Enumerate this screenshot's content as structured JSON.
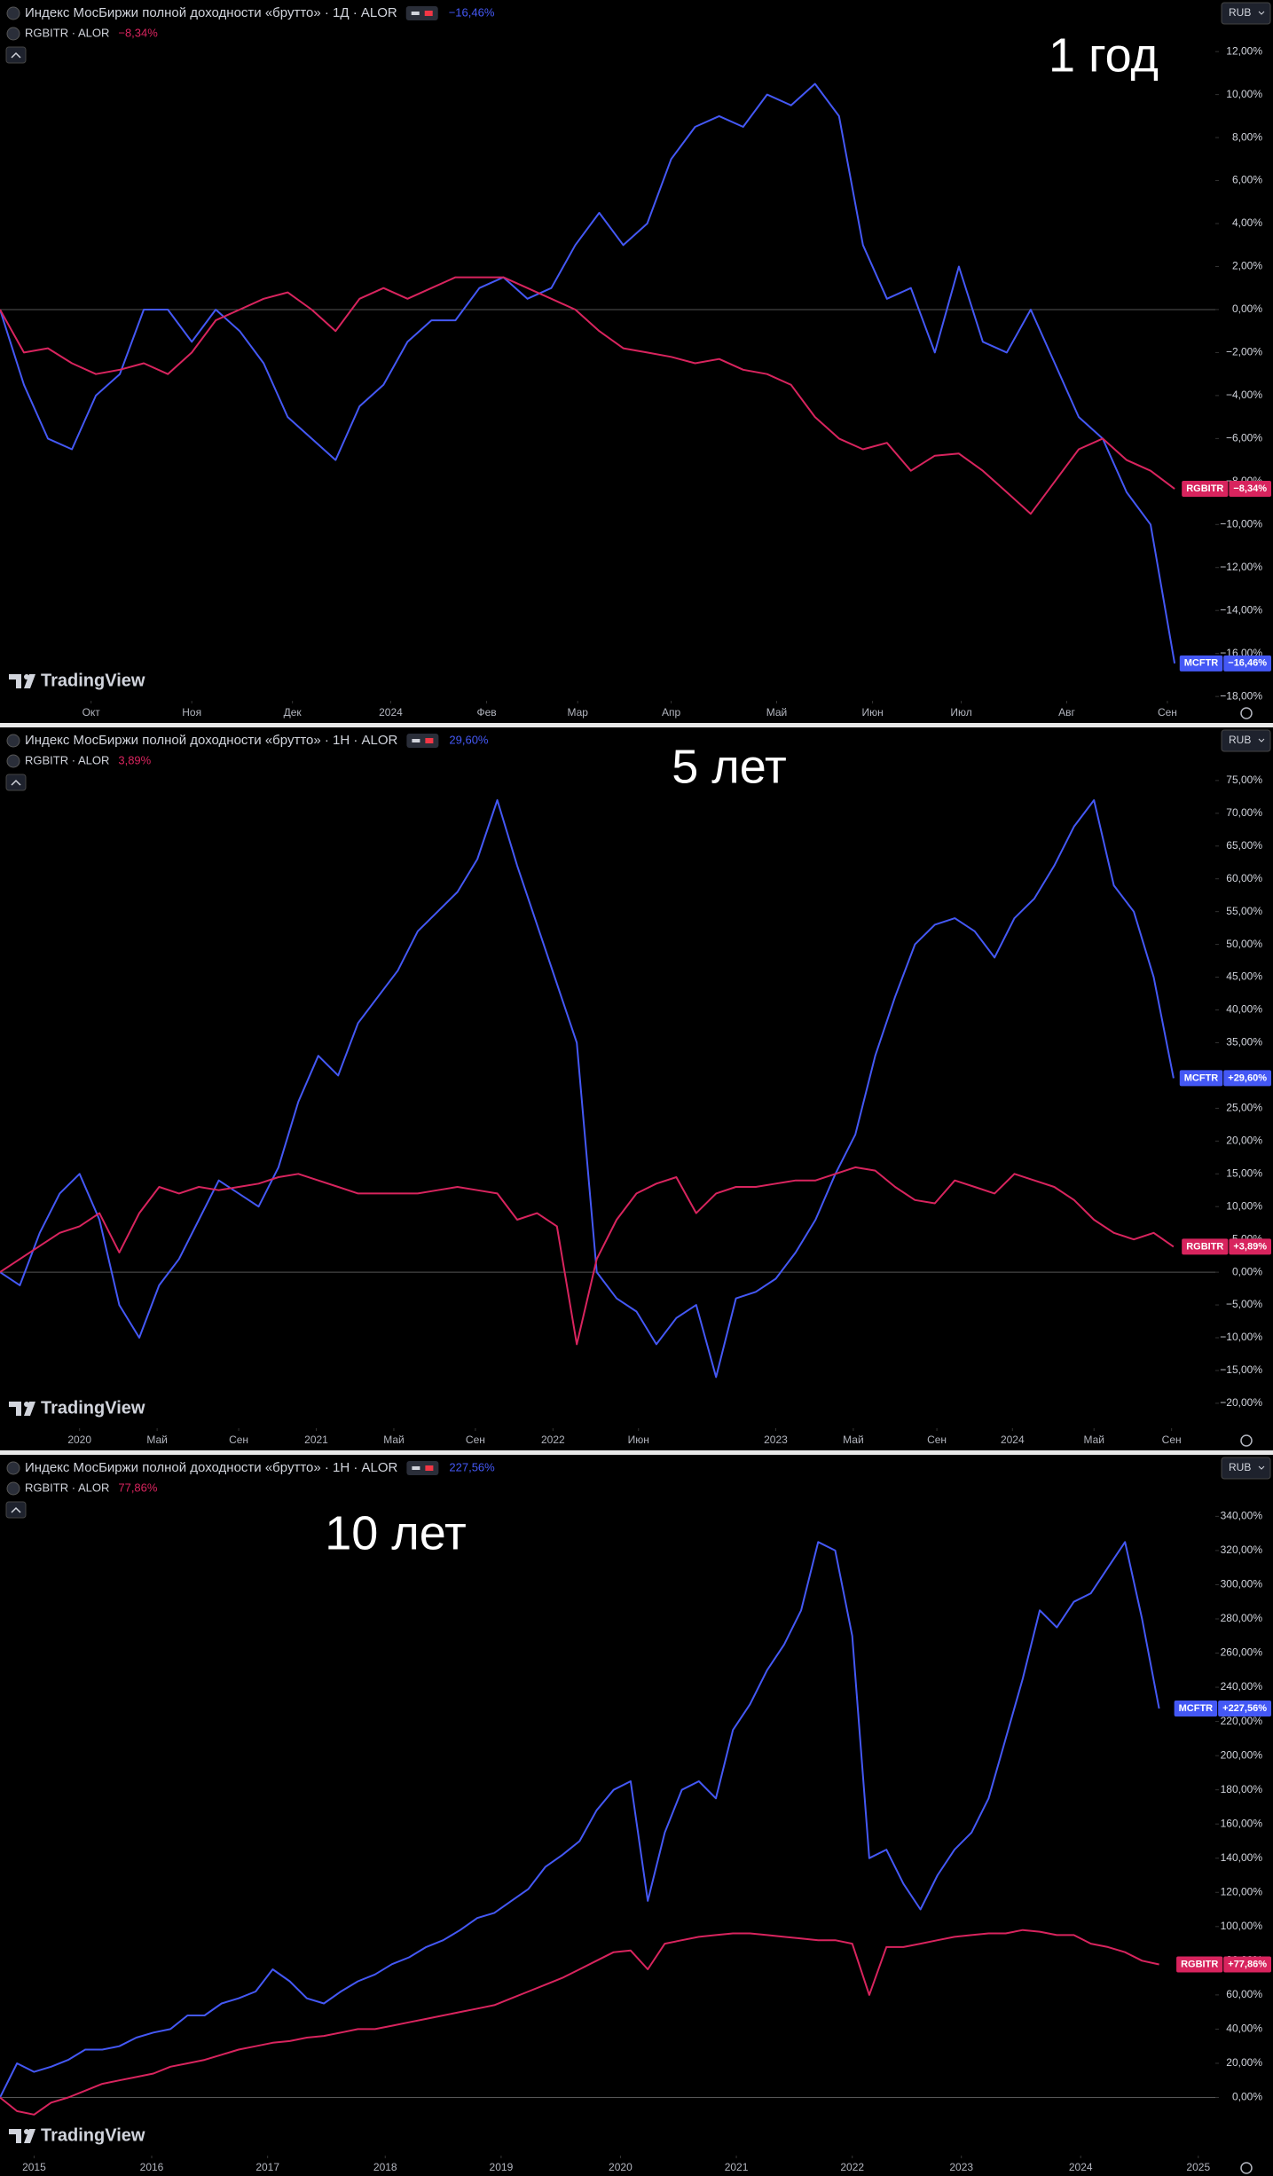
{
  "chart_data": [
    {
      "type": "line",
      "title": "Индекс МосБиржи полной доходности «брутто» · 1Д · ALOR",
      "annotation": "1 год",
      "currency": "RUB",
      "watermark": "TradingView",
      "xlim": [
        0,
        50.7
      ],
      "ylim": [
        -18.2,
        14.4
      ],
      "xticks": [
        {
          "value": 3.8,
          "label": "Окт"
        },
        {
          "value": 8.0,
          "label": "Ноя"
        },
        {
          "value": 12.2,
          "label": "Дек"
        },
        {
          "value": 16.3,
          "label": "2024"
        },
        {
          "value": 20.3,
          "label": "Фев"
        },
        {
          "value": 24.1,
          "label": "Мар"
        },
        {
          "value": 28.0,
          "label": "Апр"
        },
        {
          "value": 32.4,
          "label": "Май"
        },
        {
          "value": 36.4,
          "label": "Июн"
        },
        {
          "value": 40.1,
          "label": "Июл"
        },
        {
          "value": 44.5,
          "label": "Авг"
        },
        {
          "value": 48.7,
          "label": "Сен"
        }
      ],
      "yticks": [
        {
          "value": 12,
          "label": "12,00%"
        },
        {
          "value": 10,
          "label": "10,00%"
        },
        {
          "value": 8,
          "label": "8,00%"
        },
        {
          "value": 6,
          "label": "6,00%"
        },
        {
          "value": 4,
          "label": "4,00%"
        },
        {
          "value": 2,
          "label": "2,00%"
        },
        {
          "value": 0,
          "label": "0,00%"
        },
        {
          "value": -2,
          "label": "−2,00%"
        },
        {
          "value": -4,
          "label": "−4,00%"
        },
        {
          "value": -6,
          "label": "−6,00%"
        },
        {
          "value": -8,
          "label": "−8,00%"
        },
        {
          "value": -10,
          "label": "−10,00%"
        },
        {
          "value": -12,
          "label": "−12,00%"
        },
        {
          "value": -14,
          "label": "−14,00%"
        },
        {
          "value": -16,
          "label": "−16,00%"
        },
        {
          "value": -18,
          "label": "−18,00%"
        }
      ],
      "series": [
        {
          "name": "MCFTR",
          "legend": "Индекс МосБиржи полной доходности «брутто» · 1Д · ALOR",
          "color": "#4458f5",
          "legend_value": "−16,46%",
          "last_label": "−16,46%",
          "values": [
            0,
            -3.5,
            -6,
            -6.5,
            -4,
            -3,
            0,
            0,
            -1.5,
            0,
            -1,
            -2.5,
            -5,
            -6,
            -7,
            -4.5,
            -3.5,
            -1.5,
            -0.5,
            -0.5,
            1,
            1.5,
            0.5,
            1,
            3,
            4.5,
            3,
            4,
            7,
            8.5,
            9,
            8.5,
            10,
            9.5,
            10.5,
            9,
            3,
            0.5,
            1,
            -2,
            2,
            -1.5,
            -2,
            0,
            -2.5,
            -5,
            -6,
            -8.5,
            -10,
            -16.46
          ]
        },
        {
          "name": "RGBITR",
          "legend": "RGBITR · ALOR",
          "color": "#d8245e",
          "legend_value": "−8,34%",
          "last_label": "−8,34%",
          "values": [
            0,
            -2,
            -1.8,
            -2.5,
            -3,
            -2.8,
            -2.5,
            -3,
            -2,
            -0.5,
            0,
            0.5,
            0.8,
            0,
            -1,
            0.5,
            1,
            0.5,
            1,
            1.5,
            1.5,
            1.5,
            1,
            0.5,
            0,
            -1,
            -1.8,
            -2,
            -2.2,
            -2.5,
            -2.3,
            -2.8,
            -3,
            -3.5,
            -5,
            -6,
            -6.5,
            -6.2,
            -7.5,
            -6.8,
            -6.7,
            -7.5,
            -8.5,
            -9.5,
            -8,
            -6.5,
            -6,
            -7,
            -7.5,
            -8.34
          ]
        }
      ]
    },
    {
      "type": "line",
      "title": "Индекс МосБиржи полной доходности «брутто» · 1Н · ALOR",
      "annotation": "5 лет",
      "currency": "RUB",
      "watermark": "TradingView",
      "xlim": [
        0,
        61.1
      ],
      "ylim": [
        -23.8,
        83.1
      ],
      "xticks": [
        {
          "value": 4.0,
          "label": "2020"
        },
        {
          "value": 7.9,
          "label": "Май"
        },
        {
          "value": 12.0,
          "label": "Сен"
        },
        {
          "value": 15.9,
          "label": "2021"
        },
        {
          "value": 19.8,
          "label": "Май"
        },
        {
          "value": 23.9,
          "label": "Сен"
        },
        {
          "value": 27.8,
          "label": "2022"
        },
        {
          "value": 32.1,
          "label": "Июн"
        },
        {
          "value": 39.0,
          "label": "2023"
        },
        {
          "value": 42.9,
          "label": "Май"
        },
        {
          "value": 47.1,
          "label": "Сен"
        },
        {
          "value": 50.9,
          "label": "2024"
        },
        {
          "value": 55.0,
          "label": "Май"
        },
        {
          "value": 58.9,
          "label": "Сен"
        }
      ],
      "yticks": [
        {
          "value": 75,
          "label": "75,00%"
        },
        {
          "value": 70,
          "label": "70,00%"
        },
        {
          "value": 65,
          "label": "65,00%"
        },
        {
          "value": 60,
          "label": "60,00%"
        },
        {
          "value": 55,
          "label": "55,00%"
        },
        {
          "value": 50,
          "label": "50,00%"
        },
        {
          "value": 45,
          "label": "45,00%"
        },
        {
          "value": 40,
          "label": "40,00%"
        },
        {
          "value": 35,
          "label": "35,00%"
        },
        {
          "value": 30,
          "label": "30,00%"
        },
        {
          "value": 25,
          "label": "25,00%"
        },
        {
          "value": 20,
          "label": "20,00%"
        },
        {
          "value": 15,
          "label": "15,00%"
        },
        {
          "value": 10,
          "label": "10,00%"
        },
        {
          "value": 5,
          "label": "5,00%"
        },
        {
          "value": 0,
          "label": "0,00%"
        },
        {
          "value": -5,
          "label": "−5,00%"
        },
        {
          "value": -10,
          "label": "−10,00%"
        },
        {
          "value": -15,
          "label": "−15,00%"
        },
        {
          "value": -20,
          "label": "−20,00%"
        }
      ],
      "series": [
        {
          "name": "MCFTR",
          "legend": "Индекс МосБиржи полной доходности «брутто» · 1Н · ALOR",
          "color": "#4458f5",
          "legend_value": "29,60%",
          "last_label": "+29,60%",
          "values": [
            0,
            -2,
            6,
            12,
            15,
            8,
            -5,
            -10,
            -2,
            2,
            8,
            14,
            12,
            10,
            16,
            26,
            33,
            30,
            38,
            42,
            46,
            52,
            55,
            58,
            63,
            72,
            62,
            53,
            44,
            35,
            0,
            -4,
            -6,
            -11,
            -7,
            -5,
            -16,
            -4,
            -3,
            -1,
            3,
            8,
            15,
            21,
            33,
            42,
            50,
            53,
            54,
            52,
            48,
            54,
            57,
            62,
            68,
            72,
            59,
            55,
            45,
            29.6
          ]
        },
        {
          "name": "RGBITR",
          "legend": "RGBITR · ALOR",
          "color": "#d8245e",
          "legend_value": "3,89%",
          "last_label": "+3,89%",
          "values": [
            0,
            2,
            4,
            6,
            7,
            9,
            3,
            9,
            13,
            12,
            13,
            12.5,
            13,
            13.5,
            14.5,
            15,
            14,
            13,
            12,
            12,
            12,
            12,
            12.5,
            13,
            12.5,
            12,
            8,
            9,
            7,
            -11,
            2,
            8,
            12,
            13.5,
            14.5,
            9,
            12,
            13,
            13,
            13.5,
            14,
            14,
            15,
            16,
            15.5,
            13,
            11,
            10.5,
            14,
            13,
            12,
            15,
            14,
            13,
            11,
            8,
            6,
            5,
            6,
            3.89
          ]
        }
      ]
    },
    {
      "type": "line",
      "title": "Индекс МосБиржи полной доходности «брутто» · 1Н · ALOR",
      "annotation": "10 лет",
      "currency": "RUB",
      "watermark": "TradingView",
      "xlim": [
        0,
        71.3
      ],
      "ylim": [
        -34,
        376
      ],
      "xticks": [
        {
          "value": 2.0,
          "label": "2015"
        },
        {
          "value": 8.9,
          "label": "2016"
        },
        {
          "value": 15.7,
          "label": "2017"
        },
        {
          "value": 22.6,
          "label": "2018"
        },
        {
          "value": 29.4,
          "label": "2019"
        },
        {
          "value": 36.4,
          "label": "2020"
        },
        {
          "value": 43.2,
          "label": "2021"
        },
        {
          "value": 50.0,
          "label": "2022"
        },
        {
          "value": 56.4,
          "label": "2023"
        },
        {
          "value": 63.4,
          "label": "2024"
        },
        {
          "value": 70.3,
          "label": "2025"
        }
      ],
      "yticks": [
        {
          "value": 340,
          "label": "340,00%"
        },
        {
          "value": 320,
          "label": "320,00%"
        },
        {
          "value": 300,
          "label": "300,00%"
        },
        {
          "value": 280,
          "label": "280,00%"
        },
        {
          "value": 260,
          "label": "260,00%"
        },
        {
          "value": 240,
          "label": "240,00%"
        },
        {
          "value": 220,
          "label": "220,00%"
        },
        {
          "value": 200,
          "label": "200,00%"
        },
        {
          "value": 180,
          "label": "180,00%"
        },
        {
          "value": 160,
          "label": "160,00%"
        },
        {
          "value": 140,
          "label": "140,00%"
        },
        {
          "value": 120,
          "label": "120,00%"
        },
        {
          "value": 100,
          "label": "100,00%"
        },
        {
          "value": 80,
          "label": "80,00%"
        },
        {
          "value": 60,
          "label": "60,00%"
        },
        {
          "value": 40,
          "label": "40,00%"
        },
        {
          "value": 20,
          "label": "20,00%"
        },
        {
          "value": 0,
          "label": "0,00%"
        }
      ],
      "series": [
        {
          "name": "MCFTR",
          "legend": "Индекс МосБиржи полной доходности «брутто» · 1Н · ALOR",
          "color": "#4458f5",
          "legend_value": "227,56%",
          "last_label": "+227,56%",
          "values": [
            0,
            20,
            15,
            18,
            22,
            28,
            28,
            30,
            35,
            38,
            40,
            48,
            48,
            55,
            58,
            62,
            75,
            68,
            58,
            55,
            62,
            68,
            72,
            78,
            82,
            88,
            92,
            98,
            105,
            108,
            115,
            122,
            135,
            142,
            150,
            168,
            180,
            185,
            115,
            155,
            180,
            185,
            175,
            215,
            230,
            250,
            265,
            285,
            325,
            320,
            270,
            140,
            145,
            125,
            110,
            130,
            145,
            155,
            175,
            210,
            245,
            285,
            275,
            290,
            295,
            310,
            325,
            280,
            227.56
          ]
        },
        {
          "name": "RGBITR",
          "legend": "RGBITR · ALOR",
          "color": "#d8245e",
          "legend_value": "77,86%",
          "last_label": "+77,86%",
          "values": [
            0,
            -8,
            -10,
            -3,
            0,
            4,
            8,
            10,
            12,
            14,
            18,
            20,
            22,
            25,
            28,
            30,
            32,
            33,
            35,
            36,
            38,
            40,
            40,
            42,
            44,
            46,
            48,
            50,
            52,
            54,
            58,
            62,
            66,
            70,
            75,
            80,
            85,
            86,
            75,
            90,
            92,
            94,
            95,
            96,
            96,
            95,
            94,
            93,
            92,
            92,
            90,
            60,
            88,
            88,
            90,
            92,
            94,
            95,
            96,
            96,
            98,
            97,
            95,
            95,
            90,
            88,
            85,
            80,
            77.86
          ]
        }
      ]
    }
  ]
}
